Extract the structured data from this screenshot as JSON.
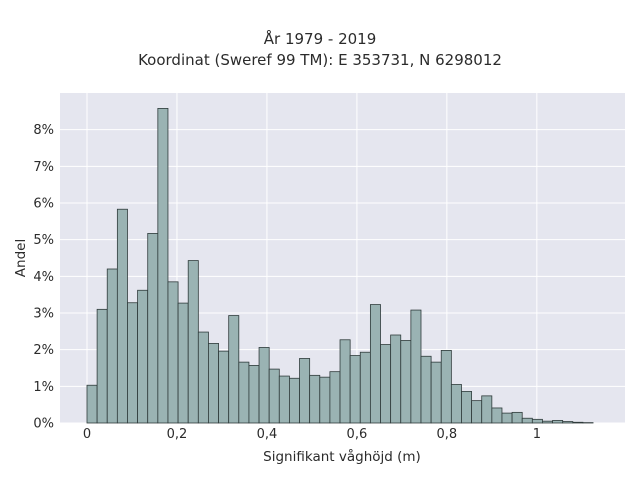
{
  "chart_data": {
    "type": "bar",
    "title_line1": "År 1979 - 2019",
    "title_line2": "Koordinat (Sweref 99 TM): E 353731, N 6298012",
    "xlabel": "Signifikant våghöjd (m)",
    "ylabel": "Andel",
    "xlim": [
      -0.06,
      1.196
    ],
    "ylim": [
      0,
      9.0
    ],
    "bin_width": 0.0225,
    "bin_start": 0,
    "x_ticks": [
      0,
      0.2,
      0.4,
      0.6,
      0.8,
      1
    ],
    "x_tick_labels": [
      "0",
      "0,2",
      "0,4",
      "0,6",
      "0,8",
      "1"
    ],
    "y_ticks": [
      0,
      1,
      2,
      3,
      4,
      5,
      6,
      7,
      8
    ],
    "y_tick_labels": [
      "0%",
      "1%",
      "2%",
      "3%",
      "4%",
      "5%",
      "6%",
      "7%",
      "8%"
    ],
    "values": [
      1.03,
      3.1,
      4.2,
      5.83,
      3.28,
      3.62,
      5.17,
      8.58,
      3.85,
      3.27,
      4.43,
      2.48,
      2.17,
      1.96,
      2.93,
      1.66,
      1.57,
      2.06,
      1.47,
      1.28,
      1.22,
      1.76,
      1.3,
      1.25,
      1.4,
      2.27,
      1.84,
      1.93,
      3.23,
      2.14,
      2.4,
      2.25,
      3.08,
      1.82,
      1.66,
      1.98,
      1.05,
      0.86,
      0.61,
      0.74,
      0.41,
      0.27,
      0.29,
      0.13,
      0.1,
      0.05,
      0.07,
      0.04,
      0.02,
      0.01
    ],
    "grid": true,
    "colors": {
      "bar_fill": "#9ab3b3",
      "bar_edge": "#2f3b3b",
      "plot_bg": "#e5e6ef",
      "grid": "#ffffff"
    }
  }
}
